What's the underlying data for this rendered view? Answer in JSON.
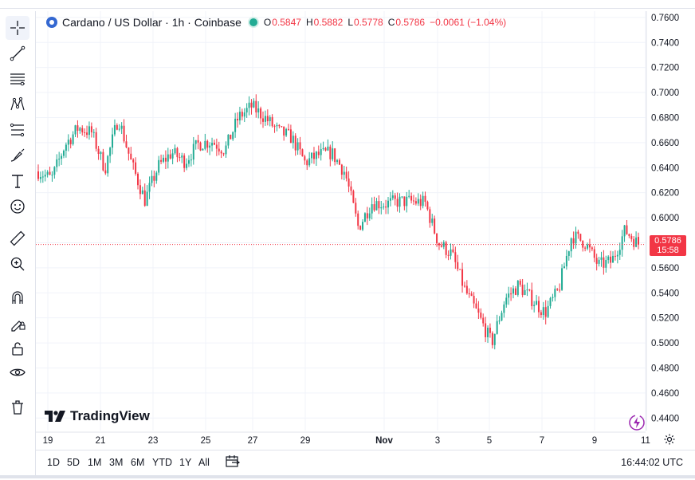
{
  "legend": {
    "title": "Cardano / US Dollar · 1h · Coinbase",
    "open_label": "O",
    "open": "0.5847",
    "high_label": "H",
    "high": "0.5882",
    "low_label": "L",
    "low": "0.5778",
    "close_label": "C",
    "close": "0.5786",
    "change": "−0.0061 (−1.04%)"
  },
  "price_tag": {
    "price": "0.5786",
    "countdown": "15:58"
  },
  "brand": "TradingView",
  "ranges": [
    "1D",
    "5D",
    "1M",
    "3M",
    "6M",
    "YTD",
    "1Y",
    "All"
  ],
  "clock": "16:44:02 UTC",
  "colors": {
    "up": "#22ab94",
    "down": "#f23645",
    "accent": "#3468d1",
    "grid": "#f0f3fa"
  },
  "toolbar_icons": [
    "crosshair-icon",
    "trend-line-icon",
    "fib-retracement-icon",
    "pattern-icon",
    "prediction-icon",
    "brush-icon",
    "text-icon",
    "emoji-icon",
    "ruler-icon",
    "zoom-in-icon",
    "magnet-icon",
    "lock-drawings-icon",
    "unlock-icon",
    "eye-icon",
    "trash-icon"
  ],
  "chart_data": {
    "type": "candlestick",
    "title": "Cardano / US Dollar · 1h · Coinbase",
    "xlabel": "",
    "ylabel": "",
    "x_ticks": [
      "19",
      "21",
      "23",
      "25",
      "27",
      "29",
      "Nov",
      "3",
      "5",
      "7",
      "9",
      "11"
    ],
    "y_ticks": [
      "0.7600",
      "0.7400",
      "0.7200",
      "0.7000",
      "0.6800",
      "0.6600",
      "0.6400",
      "0.6200",
      "0.6000",
      "0.5800",
      "0.5600",
      "0.5400",
      "0.5200",
      "0.5000",
      "0.4800",
      "0.4600",
      "0.4400"
    ],
    "ylim": [
      0.43,
      0.765
    ],
    "grid": true,
    "last_price": 0.5786,
    "path": [
      {
        "x": "19",
        "price": 0.637
      },
      {
        "x": "19.5",
        "price": 0.631
      },
      {
        "x": "20",
        "price": 0.658
      },
      {
        "x": "20.5",
        "price": 0.672
      },
      {
        "x": "21",
        "price": 0.668
      },
      {
        "x": "21.5",
        "price": 0.639
      },
      {
        "x": "22",
        "price": 0.68
      },
      {
        "x": "22.5",
        "price": 0.643
      },
      {
        "x": "23",
        "price": 0.614
      },
      {
        "x": "23.5",
        "price": 0.641
      },
      {
        "x": "24",
        "price": 0.652
      },
      {
        "x": "24.5",
        "price": 0.645
      },
      {
        "x": "25",
        "price": 0.659
      },
      {
        "x": "25.5",
        "price": 0.661
      },
      {
        "x": "26",
        "price": 0.654
      },
      {
        "x": "26.5",
        "price": 0.68
      },
      {
        "x": "27",
        "price": 0.689
      },
      {
        "x": "27.5",
        "price": 0.68
      },
      {
        "x": "28",
        "price": 0.669
      },
      {
        "x": "28.5",
        "price": 0.664
      },
      {
        "x": "29",
        "price": 0.644
      },
      {
        "x": "29.5",
        "price": 0.65
      },
      {
        "x": "30",
        "price": 0.652
      },
      {
        "x": "30.5",
        "price": 0.636
      },
      {
        "x": "31",
        "price": 0.592
      },
      {
        "x": "31.5",
        "price": 0.612
      },
      {
        "x": "Nov 1",
        "price": 0.611
      },
      {
        "x": "Nov 1.5",
        "price": 0.613
      },
      {
        "x": "2",
        "price": 0.613
      },
      {
        "x": "2.5",
        "price": 0.612
      },
      {
        "x": "3",
        "price": 0.58
      },
      {
        "x": "3.5",
        "price": 0.571
      },
      {
        "x": "4",
        "price": 0.542
      },
      {
        "x": "4.5",
        "price": 0.522
      },
      {
        "x": "5",
        "price": 0.5
      },
      {
        "x": "5.5",
        "price": 0.535
      },
      {
        "x": "6",
        "price": 0.546
      },
      {
        "x": "6.5",
        "price": 0.535
      },
      {
        "x": "7",
        "price": 0.524
      },
      {
        "x": "7.5",
        "price": 0.542
      },
      {
        "x": "8",
        "price": 0.586
      },
      {
        "x": "8.5",
        "price": 0.58
      },
      {
        "x": "9",
        "price": 0.562
      },
      {
        "x": "9.5",
        "price": 0.565
      },
      {
        "x": "10",
        "price": 0.59
      },
      {
        "x": "10.5",
        "price": 0.5786
      }
    ]
  }
}
